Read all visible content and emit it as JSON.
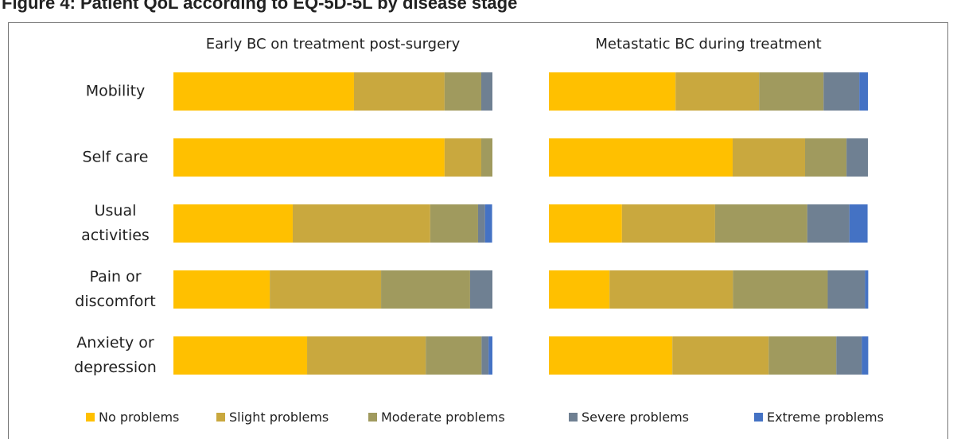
{
  "title": "Figure 4: Patient QoL according to EQ-5D-5L by disease stage",
  "chart_data": [
    {
      "type": "bar",
      "orientation": "horizontal",
      "stacked": true,
      "title": "Early BC on treatment post-surgery",
      "categories": [
        "Mobility",
        "Self care",
        "Usual activities",
        "Pain or discomfort",
        "Anxiety or depression"
      ],
      "xlim": [
        0,
        100
      ],
      "series": [
        {
          "name": "No problems",
          "color": "#FFC000",
          "values": [
            56.6,
            85,
            37.4,
            30.2,
            41.9
          ]
        },
        {
          "name": "Slight problems",
          "color": "#C9A83E",
          "values": [
            28.4,
            11.5,
            43.1,
            34.9,
            37.2
          ]
        },
        {
          "name": "Moderate problems",
          "color": "#A09A5E",
          "values": [
            11.5,
            3.5,
            15,
            27.9,
            17.5
          ]
        },
        {
          "name": "Severe problems",
          "color": "#6F8092",
          "values": [
            3.5,
            0,
            2.2,
            7,
            2.2
          ]
        },
        {
          "name": "Extreme problems",
          "color": "#4472C4",
          "values": [
            0,
            0,
            2.2,
            0,
            1.2
          ]
        }
      ]
    },
    {
      "type": "bar",
      "orientation": "horizontal",
      "stacked": true,
      "title": "Metastatic BC during treatment",
      "xlim": [
        0,
        100
      ],
      "series": [
        {
          "color": "#FFC000",
          "values": [
            39.7,
            57.6,
            22.9,
            19,
            38.7
          ]
        },
        {
          "color": "#C9A83E",
          "values": [
            26.2,
            22.7,
            29.2,
            38.7,
            30.2
          ]
        },
        {
          "color": "#A09A5E",
          "values": [
            20.2,
            13,
            28.9,
            29.7,
            21.2
          ]
        },
        {
          "color": "#6F8092",
          "values": [
            11.2,
            6.7,
            13.2,
            11.7,
            8
          ]
        },
        {
          "color": "#4472C4",
          "values": [
            2.7,
            0,
            5.7,
            1,
            2
          ]
        }
      ]
    }
  ]
}
